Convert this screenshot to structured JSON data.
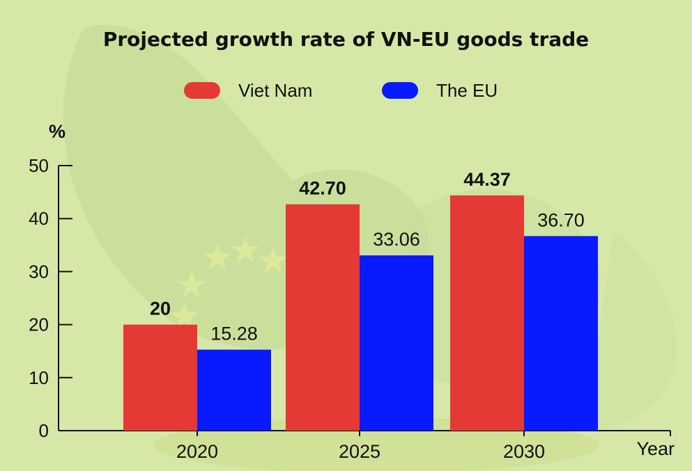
{
  "chart_data": {
    "type": "bar",
    "title": "Projected growth rate of VN-EU goods trade",
    "ylabel": "%",
    "xlabel": "Year",
    "categories": [
      "2020",
      "2025",
      "2030"
    ],
    "series": [
      {
        "name": "Viet Nam",
        "values": [
          20,
          42.7,
          44.37
        ],
        "labels": [
          "20",
          "42.70",
          "44.37"
        ],
        "color": "#e53935"
      },
      {
        "name": "The EU",
        "values": [
          15.28,
          33.06,
          36.7
        ],
        "labels": [
          "15.28",
          "33.06",
          "36.70"
        ],
        "color": "#0a1aff"
      }
    ],
    "ylim": [
      0,
      50
    ],
    "yticks": [
      0,
      10,
      20,
      30,
      40,
      50
    ],
    "ytick_labels": [
      "0",
      "10",
      "20",
      "30",
      "40",
      "50"
    ],
    "legend": "top-center",
    "grid": false
  },
  "colors": {
    "background": "#d6e8a8",
    "text": "#111111"
  }
}
